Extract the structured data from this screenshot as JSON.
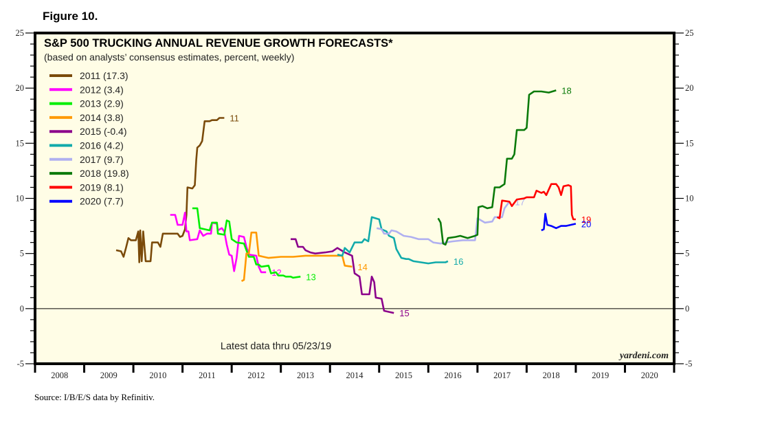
{
  "figure_label": "Figure 10.",
  "source": "Source: I/B/E/S data by Refinitiv.",
  "chart_data": {
    "type": "line",
    "title": "S&P 500 TRUCKING ANNUAL REVENUE GROWTH FORECASTS*",
    "subtitle": "(based on analysts’ consensus estimates, percent, weekly)",
    "annotation": "Latest data thru 05/23/19",
    "brand": "yardeni.com",
    "xlabel": "",
    "ylabel": "",
    "xlim": [
      2008,
      2021
    ],
    "ylim": [
      -5,
      25
    ],
    "x_tick_labels": [
      "2008",
      "2009",
      "2010",
      "2011",
      "2012",
      "2013",
      "2014",
      "2015",
      "2016",
      "2017",
      "2018",
      "2019",
      "2020"
    ],
    "y_tick_labels": [
      "-5",
      "0",
      "5",
      "10",
      "15",
      "20",
      "25"
    ],
    "y_ticks": [
      -5,
      0,
      5,
      10,
      15,
      20,
      25
    ],
    "zero_line": true,
    "grid": false,
    "legend_position": "top-left",
    "background": "#fffde6",
    "series": [
      {
        "name": "2011 (17.3)",
        "end_label": "11",
        "color": "#7a4a0a",
        "points": [
          [
            2009.65,
            5.3
          ],
          [
            2009.75,
            5.2
          ],
          [
            2009.8,
            4.7
          ],
          [
            2009.85,
            5.5
          ],
          [
            2009.9,
            6.4
          ],
          [
            2009.95,
            6.2
          ],
          [
            2010.05,
            6.2
          ],
          [
            2010.1,
            7.0
          ],
          [
            2010.12,
            4.2
          ],
          [
            2010.14,
            7.1
          ],
          [
            2010.17,
            4.3
          ],
          [
            2010.2,
            7.0
          ],
          [
            2010.25,
            4.3
          ],
          [
            2010.35,
            4.3
          ],
          [
            2010.38,
            6.0
          ],
          [
            2010.5,
            6.0
          ],
          [
            2010.55,
            5.6
          ],
          [
            2010.6,
            6.8
          ],
          [
            2010.9,
            6.8
          ],
          [
            2010.95,
            6.5
          ],
          [
            2011.0,
            6.6
          ],
          [
            2011.05,
            7.2
          ],
          [
            2011.08,
            8.5
          ],
          [
            2011.1,
            11.0
          ],
          [
            2011.2,
            10.9
          ],
          [
            2011.25,
            11.2
          ],
          [
            2011.28,
            13.5
          ],
          [
            2011.3,
            14.6
          ],
          [
            2011.35,
            14.8
          ],
          [
            2011.4,
            15.2
          ],
          [
            2011.45,
            17.0
          ],
          [
            2011.55,
            17.0
          ],
          [
            2011.6,
            17.1
          ],
          [
            2011.7,
            17.1
          ],
          [
            2011.75,
            17.3
          ],
          [
            2011.85,
            17.3
          ]
        ]
      },
      {
        "name": "2012 (3.4)",
        "end_label": "12",
        "color": "#ff00ff",
        "points": [
          [
            2010.75,
            8.5
          ],
          [
            2010.85,
            8.5
          ],
          [
            2010.9,
            7.6
          ],
          [
            2011.0,
            7.6
          ],
          [
            2011.05,
            8.7
          ],
          [
            2011.08,
            7.0
          ],
          [
            2011.12,
            7.0
          ],
          [
            2011.15,
            6.2
          ],
          [
            2011.3,
            6.3
          ],
          [
            2011.35,
            7.1
          ],
          [
            2011.42,
            6.6
          ],
          [
            2011.5,
            6.8
          ],
          [
            2011.58,
            6.8
          ],
          [
            2011.6,
            7.8
          ],
          [
            2011.7,
            7.7
          ],
          [
            2011.72,
            7.1
          ],
          [
            2011.8,
            7.3
          ],
          [
            2011.85,
            7.0
          ],
          [
            2011.9,
            5.8
          ],
          [
            2011.95,
            4.9
          ],
          [
            2012.0,
            4.8
          ],
          [
            2012.05,
            3.4
          ],
          [
            2012.1,
            4.6
          ],
          [
            2012.15,
            6.6
          ],
          [
            2012.25,
            6.5
          ],
          [
            2012.3,
            5.6
          ],
          [
            2012.35,
            4.9
          ],
          [
            2012.5,
            4.8
          ],
          [
            2012.55,
            3.8
          ],
          [
            2012.6,
            3.3
          ],
          [
            2012.7,
            3.3
          ]
        ]
      },
      {
        "name": "2013 (2.9)",
        "end_label": "13",
        "color": "#00ee00",
        "points": [
          [
            2011.2,
            9.1
          ],
          [
            2011.3,
            9.1
          ],
          [
            2011.35,
            7.3
          ],
          [
            2011.55,
            7.1
          ],
          [
            2011.6,
            7.8
          ],
          [
            2011.7,
            7.8
          ],
          [
            2011.72,
            6.8
          ],
          [
            2011.85,
            6.7
          ],
          [
            2011.9,
            8.0
          ],
          [
            2011.95,
            7.9
          ],
          [
            2012.0,
            6.3
          ],
          [
            2012.1,
            6.0
          ],
          [
            2012.25,
            5.9
          ],
          [
            2012.35,
            4.7
          ],
          [
            2012.45,
            4.7
          ],
          [
            2012.5,
            4.0
          ],
          [
            2012.55,
            4.0
          ],
          [
            2012.6,
            3.8
          ],
          [
            2012.75,
            3.9
          ],
          [
            2012.8,
            3.2
          ],
          [
            2012.9,
            3.3
          ],
          [
            2012.95,
            3.0
          ],
          [
            2013.05,
            3.0
          ],
          [
            2013.1,
            2.9
          ],
          [
            2013.2,
            2.9
          ],
          [
            2013.25,
            2.8
          ],
          [
            2013.4,
            2.9
          ]
        ]
      },
      {
        "name": "2014 (3.8)",
        "end_label": "14",
        "color": "#ff9900",
        "points": [
          [
            2012.2,
            2.5
          ],
          [
            2012.25,
            2.6
          ],
          [
            2012.3,
            5.0
          ],
          [
            2012.35,
            5.0
          ],
          [
            2012.4,
            6.9
          ],
          [
            2012.5,
            6.9
          ],
          [
            2012.55,
            4.8
          ],
          [
            2012.75,
            4.6
          ],
          [
            2013.0,
            4.7
          ],
          [
            2013.25,
            4.7
          ],
          [
            2013.5,
            4.8
          ],
          [
            2013.75,
            4.8
          ],
          [
            2014.0,
            4.8
          ],
          [
            2014.25,
            4.8
          ],
          [
            2014.3,
            3.9
          ],
          [
            2014.45,
            3.8
          ]
        ]
      },
      {
        "name": "2015 (-0.4)",
        "end_label": "15",
        "color": "#8b008b",
        "points": [
          [
            2013.2,
            6.3
          ],
          [
            2013.3,
            6.3
          ],
          [
            2013.35,
            5.6
          ],
          [
            2013.45,
            5.6
          ],
          [
            2013.5,
            5.3
          ],
          [
            2013.6,
            5.1
          ],
          [
            2013.7,
            5.0
          ],
          [
            2013.9,
            5.1
          ],
          [
            2014.05,
            5.2
          ],
          [
            2014.15,
            5.5
          ],
          [
            2014.3,
            5.1
          ],
          [
            2014.4,
            4.9
          ],
          [
            2014.45,
            4.8
          ],
          [
            2014.5,
            3.2
          ],
          [
            2014.6,
            2.9
          ],
          [
            2014.65,
            1.3
          ],
          [
            2014.8,
            1.3
          ],
          [
            2014.85,
            2.9
          ],
          [
            2014.9,
            2.4
          ],
          [
            2014.93,
            1.0
          ],
          [
            2015.05,
            0.9
          ],
          [
            2015.1,
            -0.2
          ],
          [
            2015.2,
            -0.3
          ],
          [
            2015.3,
            -0.4
          ]
        ]
      },
      {
        "name": "2016 (4.2)",
        "end_label": "16",
        "color": "#11aaaa",
        "points": [
          [
            2014.15,
            4.9
          ],
          [
            2014.25,
            4.8
          ],
          [
            2014.3,
            5.5
          ],
          [
            2014.4,
            5.1
          ],
          [
            2014.5,
            6.0
          ],
          [
            2014.65,
            6.0
          ],
          [
            2014.7,
            6.3
          ],
          [
            2014.78,
            6.1
          ],
          [
            2014.85,
            8.3
          ],
          [
            2015.0,
            8.1
          ],
          [
            2015.05,
            7.2
          ],
          [
            2015.15,
            7.0
          ],
          [
            2015.2,
            6.6
          ],
          [
            2015.3,
            6.4
          ],
          [
            2015.35,
            5.4
          ],
          [
            2015.45,
            4.6
          ],
          [
            2015.55,
            4.5
          ],
          [
            2015.6,
            4.5
          ],
          [
            2015.7,
            4.3
          ],
          [
            2015.85,
            4.2
          ],
          [
            2016.0,
            4.1
          ],
          [
            2016.15,
            4.2
          ],
          [
            2016.35,
            4.2
          ],
          [
            2016.4,
            4.3
          ]
        ]
      },
      {
        "name": "2017 (9.7)",
        "end_label": "17",
        "color": "#b0b0f0",
        "points": [
          [
            2014.95,
            7.3
          ],
          [
            2015.05,
            7.2
          ],
          [
            2015.1,
            6.8
          ],
          [
            2015.2,
            6.8
          ],
          [
            2015.25,
            7.1
          ],
          [
            2015.35,
            7.0
          ],
          [
            2015.5,
            6.6
          ],
          [
            2015.65,
            6.5
          ],
          [
            2015.8,
            6.3
          ],
          [
            2016.0,
            6.3
          ],
          [
            2016.1,
            6.0
          ],
          [
            2016.25,
            5.9
          ],
          [
            2016.35,
            6.0
          ],
          [
            2016.5,
            6.1
          ],
          [
            2016.7,
            6.2
          ],
          [
            2016.95,
            6.2
          ],
          [
            2017.0,
            8.2
          ],
          [
            2017.15,
            7.8
          ],
          [
            2017.3,
            7.9
          ],
          [
            2017.35,
            8.3
          ],
          [
            2017.5,
            8.3
          ],
          [
            2017.55,
            9.1
          ],
          [
            2017.65,
            9.7
          ]
        ]
      },
      {
        "name": "2018 (19.8)",
        "end_label": "18",
        "color": "#0a7a0a",
        "points": [
          [
            2016.2,
            8.2
          ],
          [
            2016.25,
            7.8
          ],
          [
            2016.3,
            5.9
          ],
          [
            2016.35,
            5.8
          ],
          [
            2016.4,
            6.4
          ],
          [
            2016.55,
            6.5
          ],
          [
            2016.65,
            6.6
          ],
          [
            2016.8,
            6.4
          ],
          [
            2016.95,
            6.6
          ],
          [
            2017.0,
            6.7
          ],
          [
            2017.02,
            9.2
          ],
          [
            2017.1,
            9.3
          ],
          [
            2017.2,
            9.1
          ],
          [
            2017.3,
            9.2
          ],
          [
            2017.35,
            11.0
          ],
          [
            2017.45,
            11.0
          ],
          [
            2017.55,
            11.3
          ],
          [
            2017.6,
            13.6
          ],
          [
            2017.7,
            13.6
          ],
          [
            2017.75,
            14.0
          ],
          [
            2017.8,
            16.2
          ],
          [
            2017.95,
            16.2
          ],
          [
            2018.0,
            16.4
          ],
          [
            2018.05,
            19.4
          ],
          [
            2018.15,
            19.7
          ],
          [
            2018.3,
            19.7
          ],
          [
            2018.45,
            19.6
          ],
          [
            2018.6,
            19.8
          ]
        ]
      },
      {
        "name": "2019 (8.1)",
        "end_label": "19",
        "color": "#ff0000",
        "points": [
          [
            2017.4,
            8.3
          ],
          [
            2017.45,
            8.2
          ],
          [
            2017.5,
            9.8
          ],
          [
            2017.65,
            9.7
          ],
          [
            2017.7,
            9.3
          ],
          [
            2017.8,
            9.9
          ],
          [
            2017.95,
            10.0
          ],
          [
            2018.0,
            10.1
          ],
          [
            2018.15,
            10.1
          ],
          [
            2018.2,
            10.7
          ],
          [
            2018.3,
            10.5
          ],
          [
            2018.35,
            10.6
          ],
          [
            2018.4,
            10.3
          ],
          [
            2018.5,
            11.3
          ],
          [
            2018.6,
            11.3
          ],
          [
            2018.65,
            11.0
          ],
          [
            2018.7,
            10.3
          ],
          [
            2018.75,
            11.1
          ],
          [
            2018.85,
            11.2
          ],
          [
            2018.9,
            11.1
          ],
          [
            2018.92,
            8.5
          ],
          [
            2018.95,
            8.1
          ],
          [
            2019.0,
            8.1
          ]
        ]
      },
      {
        "name": "2020 (7.7)",
        "end_label": "20",
        "color": "#0000ff",
        "points": [
          [
            2018.3,
            7.1
          ],
          [
            2018.35,
            7.2
          ],
          [
            2018.38,
            8.6
          ],
          [
            2018.42,
            7.6
          ],
          [
            2018.5,
            7.5
          ],
          [
            2018.6,
            7.3
          ],
          [
            2018.7,
            7.5
          ],
          [
            2018.8,
            7.5
          ],
          [
            2018.9,
            7.6
          ],
          [
            2019.0,
            7.7
          ]
        ]
      }
    ]
  }
}
